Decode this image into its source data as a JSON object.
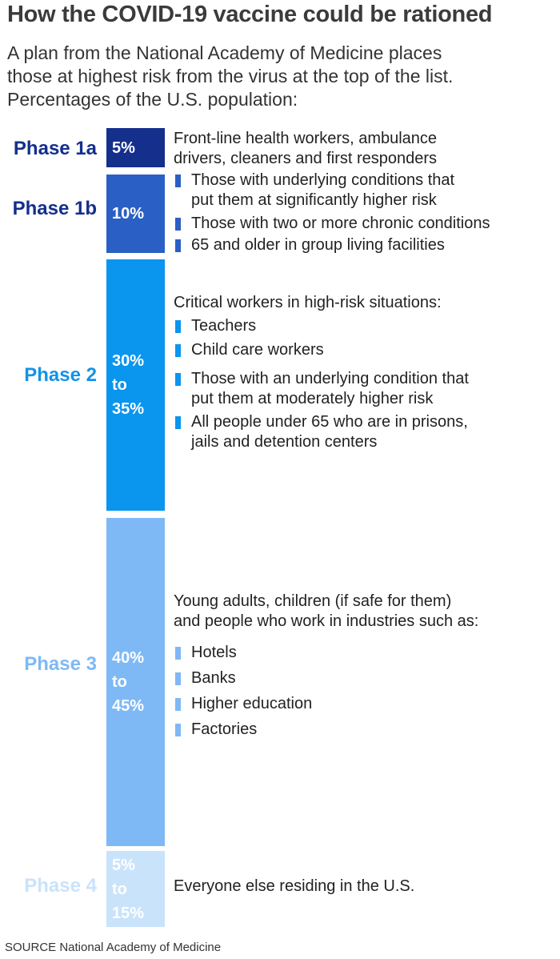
{
  "title": "How the COVID-19 vaccine could be rationed",
  "subtitle": [
    "A plan from the National Academy of Medicine places",
    "those at highest risk from the virus at the top of the list.",
    "Percentages of the U.S. population:"
  ],
  "phases": [
    {
      "label": "Phase 1a",
      "share_percent": [
        5
      ],
      "share_text": [
        "5%"
      ],
      "color": "#142f8c",
      "label_color": "#142f8c",
      "intro": [
        "Front-line health workers, ambulance",
        "drivers, cleaners and first responders"
      ],
      "items": []
    },
    {
      "label": "Phase 1b",
      "share_percent": [
        10
      ],
      "share_text": [
        "10%"
      ],
      "color": "#2a5fc5",
      "label_color": "#142f8c",
      "intro": [],
      "items": [
        [
          "Those with underlying conditions that",
          "put them at significantly higher risk"
        ],
        [
          "Those with two or more chronic conditions"
        ],
        [
          "65 and older in group living facilities"
        ]
      ]
    },
    {
      "label": "Phase 2",
      "share_percent": [
        30,
        35
      ],
      "share_text": [
        "30%",
        "to",
        "35%"
      ],
      "color": "#0a95ee",
      "label_color": "#1293e8",
      "intro": [
        "Critical workers in high-risk situations:"
      ],
      "items": [
        [
          "Teachers"
        ],
        [
          "Child care workers"
        ],
        [
          "Those with an underlying condition that",
          "put them at moderately higher risk"
        ],
        [
          "All people under 65 who are in prisons,",
          "jails and detention centers"
        ]
      ]
    },
    {
      "label": "Phase 3",
      "share_percent": [
        40,
        45
      ],
      "share_text": [
        "40%",
        "to",
        "45%"
      ],
      "color": "#7eb9f6",
      "label_color": "#7eb9f6",
      "intro": [
        "Young adults, children (if safe for them)",
        "and people who work in industries such as:"
      ],
      "items": [
        [
          "Hotels"
        ],
        [
          "Banks"
        ],
        [
          "Higher education"
        ],
        [
          "Factories"
        ]
      ]
    },
    {
      "label": "Phase 4",
      "share_percent": [
        5,
        15
      ],
      "share_text": [
        "5%",
        "to",
        "15%"
      ],
      "color": "#c9e3fb",
      "label_color": "#c9e3fb",
      "intro": [
        "Everyone else residing in the U.S."
      ],
      "items": []
    }
  ],
  "source": "SOURCE National Academy of Medicine"
}
